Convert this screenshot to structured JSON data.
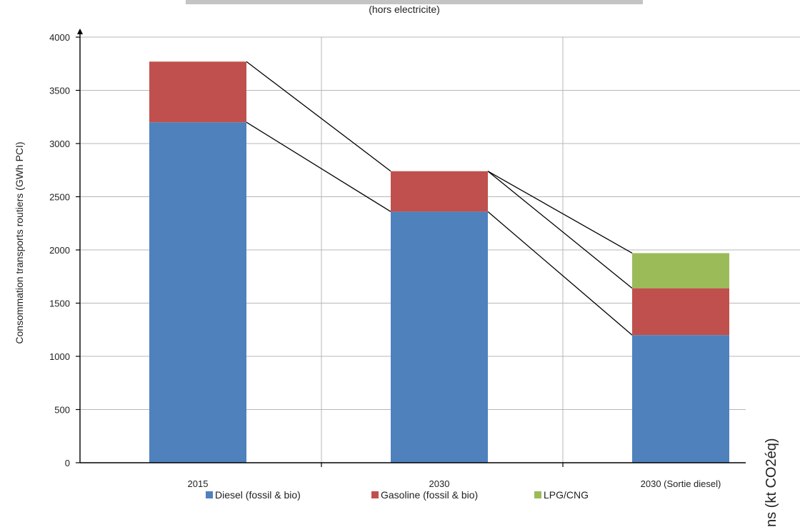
{
  "chart_data": {
    "type": "bar",
    "stacked": true,
    "title": "",
    "subtitle": "(hors electricite)",
    "xlabel": "",
    "ylabel": "Consommation transports routiers (GWh PCI)",
    "ylim": [
      0,
      4000
    ],
    "yticks": [
      0,
      500,
      1000,
      1500,
      2000,
      2500,
      3000,
      3500,
      4000
    ],
    "ytick_labels": [
      "0",
      "500",
      "1000",
      "1500",
      "2000",
      "2500",
      "3000",
      "3500",
      "4000"
    ],
    "grid": true,
    "legend_position": "bottom",
    "categories": [
      "2015",
      "2030",
      "2030 (Sortie diesel)"
    ],
    "series": [
      {
        "name": "Diesel (fossil & bio)",
        "color": "#4F81BD",
        "values": [
          3200,
          2360,
          1200
        ]
      },
      {
        "name": "Gasoline (fossil & bio)",
        "color": "#C0504D",
        "values": [
          570,
          380,
          440
        ]
      },
      {
        "name": "LPG/CNG",
        "color": "#9BBB59",
        "values": [
          0,
          0,
          330
        ]
      }
    ],
    "connector_lines": true
  },
  "side_fragment": {
    "text": "ns (kt CO2éq)"
  }
}
